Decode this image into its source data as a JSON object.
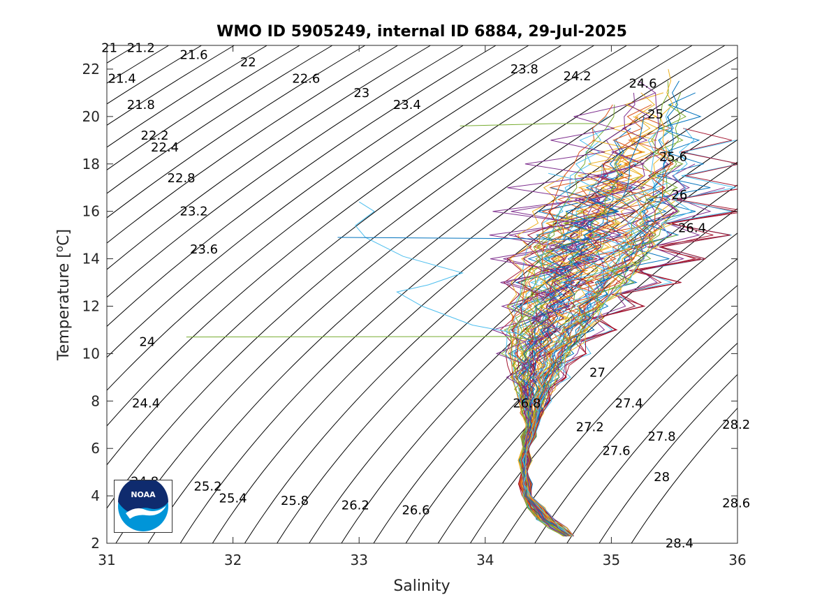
{
  "chart_data": {
    "type": "line",
    "title": "WMO ID 5905249, internal ID 6884, 29-Jul-2025",
    "xlabel": "Salinity",
    "ylabel": "Temperature [",
    "ylabel_sup": "o",
    "ylabel_unit": "C]",
    "xlim": [
      31,
      36
    ],
    "ylim": [
      2,
      23
    ],
    "xticks": [
      "31",
      "32",
      "33",
      "34",
      "35",
      "36"
    ],
    "yticks": [
      "2",
      "4",
      "6",
      "8",
      "10",
      "12",
      "14",
      "16",
      "18",
      "20",
      "22"
    ],
    "grid": false,
    "isopycnals": {
      "min": 21.0,
      "max": 28.8,
      "step": 0.2,
      "color": "#000000"
    },
    "contour_labels": [
      {
        "text": "21",
        "S": 31.02,
        "T": 22.9
      },
      {
        "text": "21.2",
        "S": 31.27,
        "T": 22.9
      },
      {
        "text": "21.6",
        "S": 31.69,
        "T": 22.6
      },
      {
        "text": "22",
        "S": 32.12,
        "T": 22.3
      },
      {
        "text": "21.4",
        "S": 31.12,
        "T": 21.6
      },
      {
        "text": "22.6",
        "S": 32.58,
        "T": 21.6
      },
      {
        "text": "23",
        "S": 33.02,
        "T": 21.0
      },
      {
        "text": "23.8",
        "S": 34.31,
        "T": 22.0
      },
      {
        "text": "24.2",
        "S": 34.73,
        "T": 21.7
      },
      {
        "text": "24.6",
        "S": 35.25,
        "T": 21.4
      },
      {
        "text": "21.8",
        "S": 31.27,
        "T": 20.5
      },
      {
        "text": "23.4",
        "S": 33.38,
        "T": 20.5
      },
      {
        "text": "25",
        "S": 35.35,
        "T": 20.1
      },
      {
        "text": "22.2",
        "S": 31.38,
        "T": 19.2
      },
      {
        "text": "22.4",
        "S": 31.46,
        "T": 18.7
      },
      {
        "text": "25.6",
        "S": 35.49,
        "T": 18.3
      },
      {
        "text": "22.8",
        "S": 31.59,
        "T": 17.4
      },
      {
        "text": "26",
        "S": 35.54,
        "T": 16.7
      },
      {
        "text": "23.2",
        "S": 31.69,
        "T": 16.0
      },
      {
        "text": "26.4",
        "S": 35.64,
        "T": 15.3
      },
      {
        "text": "23.6",
        "S": 31.77,
        "T": 14.4
      },
      {
        "text": "24",
        "S": 31.32,
        "T": 10.5
      },
      {
        "text": "27",
        "S": 34.89,
        "T": 9.2
      },
      {
        "text": "24.4",
        "S": 31.31,
        "T": 7.9
      },
      {
        "text": "26.8",
        "S": 34.33,
        "T": 7.9
      },
      {
        "text": "27.4",
        "S": 35.14,
        "T": 7.9
      },
      {
        "text": "27.2",
        "S": 34.83,
        "T": 6.9
      },
      {
        "text": "28.2",
        "S": 35.99,
        "T": 7.0
      },
      {
        "text": "27.8",
        "S": 35.4,
        "T": 6.5
      },
      {
        "text": "27.6",
        "S": 35.04,
        "T": 5.9
      },
      {
        "text": "24.8",
        "S": 31.3,
        "T": 4.6
      },
      {
        "text": "25.2",
        "S": 31.8,
        "T": 4.4
      },
      {
        "text": "28",
        "S": 35.4,
        "T": 4.8
      },
      {
        "text": "25.4",
        "S": 32.0,
        "T": 3.9
      },
      {
        "text": "25.8",
        "S": 32.49,
        "T": 3.8
      },
      {
        "text": "26.2",
        "S": 32.97,
        "T": 3.6
      },
      {
        "text": "26.6",
        "S": 33.45,
        "T": 3.4
      },
      {
        "text": "28.6",
        "S": 35.99,
        "T": 3.7
      },
      {
        "text": "28.4",
        "S": 35.54,
        "T": 2.0
      }
    ],
    "profile_colors": [
      "#0072bd",
      "#d95319",
      "#edb120",
      "#7e2f8e",
      "#77ac30",
      "#4dbeee",
      "#a2142f"
    ],
    "profile_count": 90,
    "envelope": [
      {
        "T": 2.3,
        "S": 34.66,
        "spread": 0.04
      },
      {
        "T": 3.0,
        "S": 34.48,
        "spread": 0.06
      },
      {
        "T": 4.0,
        "S": 34.33,
        "spread": 0.03
      },
      {
        "T": 5.0,
        "S": 34.31,
        "spread": 0.02
      },
      {
        "T": 6.0,
        "S": 34.32,
        "spread": 0.02
      },
      {
        "T": 7.0,
        "S": 34.37,
        "spread": 0.04
      },
      {
        "T": 8.0,
        "S": 34.38,
        "spread": 0.1
      },
      {
        "T": 9.0,
        "S": 34.4,
        "spread": 0.18
      },
      {
        "T": 10.0,
        "S": 34.45,
        "spread": 0.25
      },
      {
        "T": 11.0,
        "S": 34.53,
        "spread": 0.33
      },
      {
        "T": 12.0,
        "S": 34.62,
        "spread": 0.38
      },
      {
        "T": 13.0,
        "S": 34.73,
        "spread": 0.45
      },
      {
        "T": 14.0,
        "S": 34.83,
        "spread": 0.52
      },
      {
        "T": 15.0,
        "S": 34.93,
        "spread": 0.55
      },
      {
        "T": 16.0,
        "S": 35.03,
        "spread": 0.55
      },
      {
        "T": 17.0,
        "S": 35.1,
        "spread": 0.52
      },
      {
        "T": 18.0,
        "S": 35.17,
        "spread": 0.45
      },
      {
        "T": 19.0,
        "S": 35.22,
        "spread": 0.4
      },
      {
        "T": 20.0,
        "S": 35.27,
        "spread": 0.35
      },
      {
        "T": 21.0,
        "S": 35.31,
        "spread": 0.28
      },
      {
        "T": 22.0,
        "S": 35.35,
        "spread": 0.22
      }
    ],
    "outliers": [
      {
        "color": "#4dbeee",
        "points": [
          [
            33.0,
            16.4
          ],
          [
            33.12,
            16.0
          ],
          [
            32.97,
            15.4
          ],
          [
            33.05,
            14.9
          ],
          [
            33.35,
            14.1
          ],
          [
            33.82,
            13.4
          ],
          [
            33.55,
            12.9
          ],
          [
            33.3,
            12.6
          ],
          [
            33.5,
            12.0
          ],
          [
            33.9,
            11.2
          ],
          [
            34.3,
            10.8
          ]
        ]
      },
      {
        "color": "#0072bd",
        "points": [
          [
            32.83,
            14.9
          ],
          [
            34.3,
            14.85
          ],
          [
            34.85,
            14.8
          ]
        ]
      },
      {
        "color": "#77ac30",
        "points": [
          [
            31.63,
            10.7
          ],
          [
            34.15,
            10.72
          ],
          [
            34.38,
            10.6
          ]
        ]
      },
      {
        "color": "#77ac30",
        "points": [
          [
            33.8,
            19.6
          ],
          [
            34.55,
            19.7
          ],
          [
            34.9,
            19.7
          ]
        ]
      },
      {
        "color": "#4dbeee",
        "points": [
          [
            34.5,
            17.6
          ],
          [
            34.75,
            17.3
          ],
          [
            35.05,
            16.5
          ],
          [
            35.3,
            16.9
          ],
          [
            35.45,
            17.2
          ]
        ]
      }
    ]
  }
}
